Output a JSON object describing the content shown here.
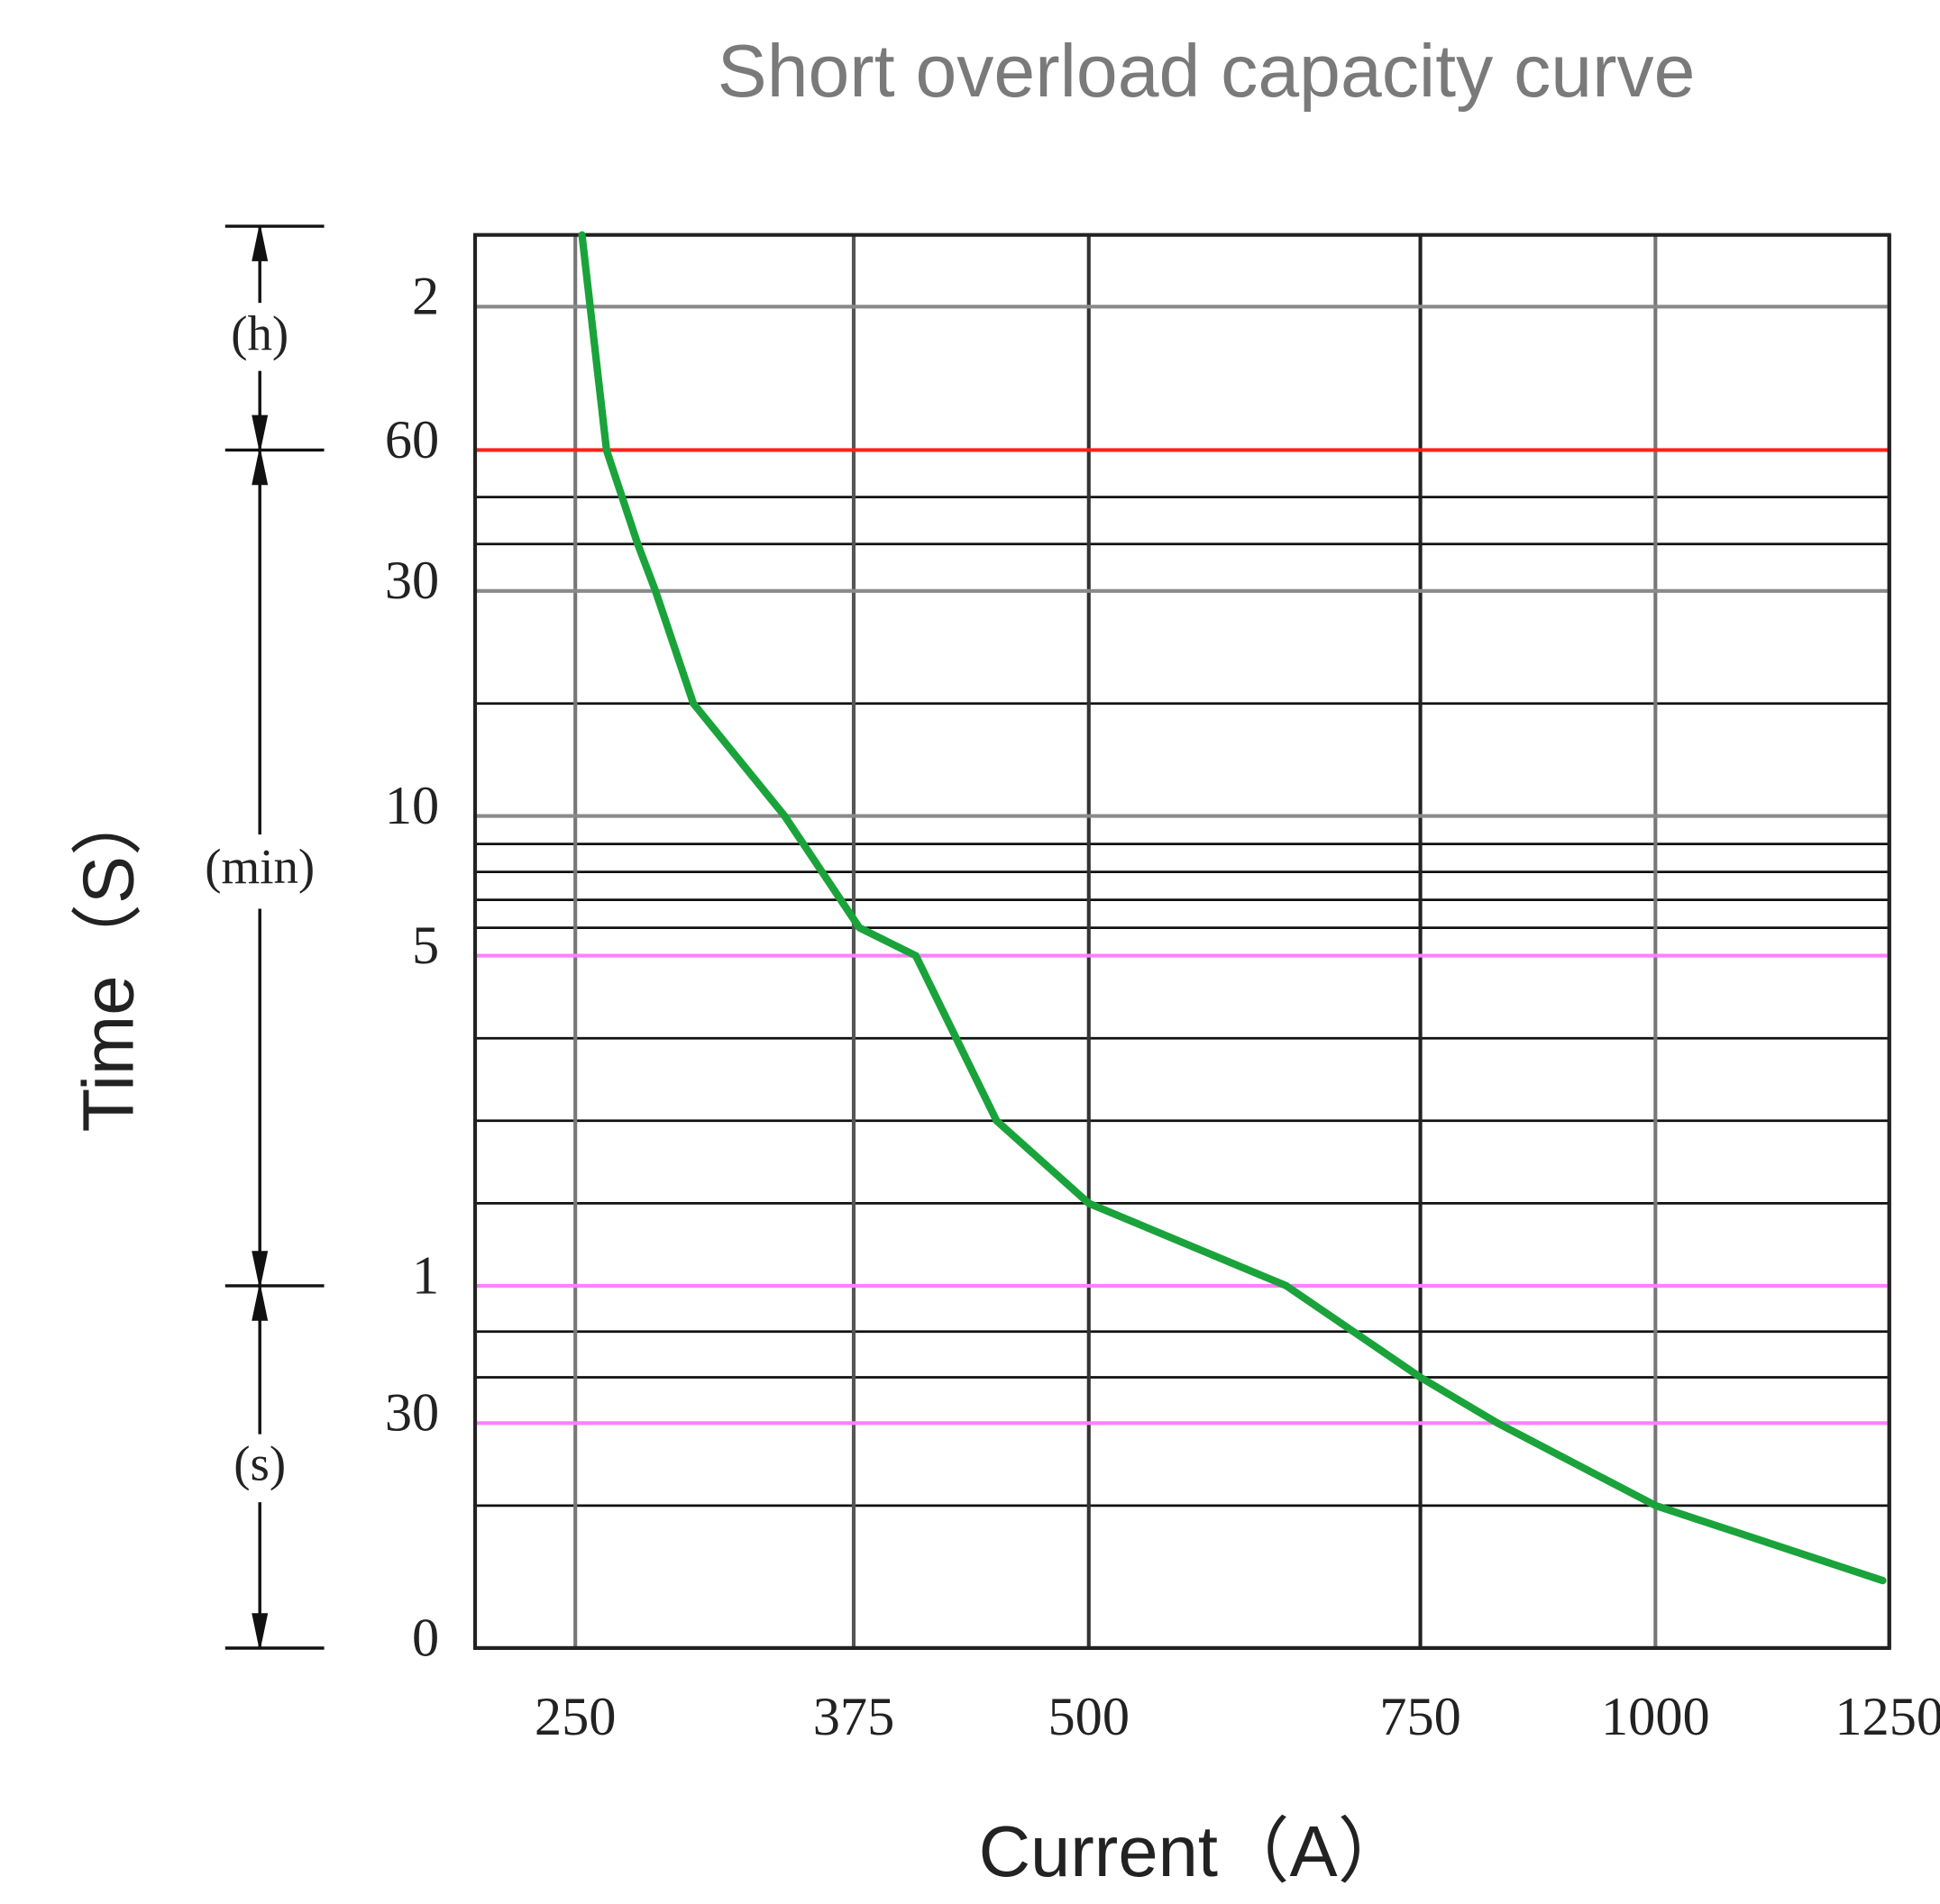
{
  "chart_data": {
    "type": "line",
    "title": "Short overload capacity curve",
    "x_label": "Current（A）",
    "y_label": "Time（S）",
    "y_unit_labels": [
      "(h)",
      "(min)",
      "(s)"
    ],
    "x": [
      253,
      264,
      278,
      286,
      303,
      344,
      378,
      408,
      451,
      500,
      649,
      750,
      832,
      1000,
      1243
    ],
    "values": [
      9000,
      3600,
      2400,
      1800,
      1200,
      600,
      360,
      300,
      180,
      120,
      60,
      40,
      30,
      19,
      9
    ],
    "color": "#1aa33a",
    "xlim": [
      205,
      1250
    ],
    "xticks": [
      250,
      375,
      500,
      750,
      1000,
      1250
    ],
    "ylim": [
      0,
      9000
    ],
    "yticks": [
      {
        "value": 7200,
        "label": "2"
      },
      {
        "value": 3600,
        "label": "60"
      },
      {
        "value": 1800,
        "label": "30"
      },
      {
        "value": 600,
        "label": "10"
      },
      {
        "value": 300,
        "label": "5"
      },
      {
        "value": 60,
        "label": "1"
      },
      30,
      0
    ],
    "ygrid_colors": [
      "#8a8a8a",
      "#ff2020",
      "#8a8a8a",
      "#8a8a8a",
      "#ff80ff",
      "#ff80ff",
      "#ff80ff",
      "#222222"
    ],
    "xgrid_colors": [
      "#777777",
      "#555555",
      "#333333",
      "#222222",
      "#777777",
      "#222222"
    ],
    "y_minor_grid": [
      3000,
      2400,
      1200,
      540,
      480,
      420,
      360,
      240,
      180,
      120,
      50,
      40,
      19
    ],
    "minor_grid_color": "#111111",
    "grid": true
  }
}
